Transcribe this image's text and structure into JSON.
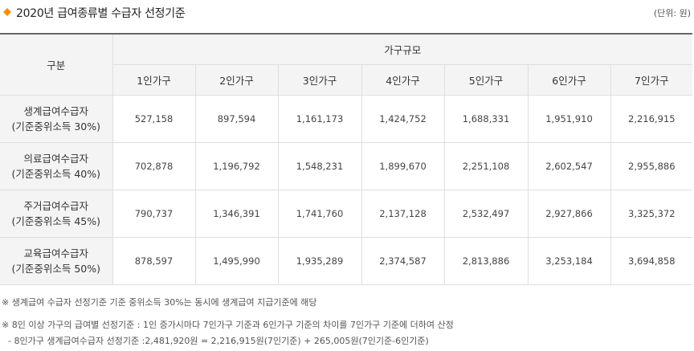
{
  "header": {
    "title": "2020년 급여종류별 수급자 선정기준",
    "unit": "(단위: 원)",
    "accent_color": "#f39200"
  },
  "table": {
    "row_header_label": "구분",
    "group_header": "가구규모",
    "columns": [
      "1인가구",
      "2인가구",
      "3인가구",
      "4인가구",
      "5인가구",
      "6인가구",
      "7인가구"
    ],
    "rows": [
      {
        "name": "생계급여수급자",
        "sub": "(기준중위소득 30%)",
        "values": [
          "527,158",
          "897,594",
          "1,161,173",
          "1,424,752",
          "1,688,331",
          "1,951,910",
          "2,216,915"
        ]
      },
      {
        "name": "의료급여수급자",
        "sub": "(기준중위소득 40%)",
        "values": [
          "702,878",
          "1,196,792",
          "1,548,231",
          "1,899,670",
          "2,251,108",
          "2,602,547",
          "2,955,886"
        ]
      },
      {
        "name": "주거급여수급자",
        "sub": "(기준중위소득 45%)",
        "values": [
          "790,737",
          "1,346,391",
          "1,741,760",
          "2,137,128",
          "2,532,497",
          "2,927,866",
          "3,325,372"
        ]
      },
      {
        "name": "교육급여수급자",
        "sub": "(기준중위소득 50%)",
        "values": [
          "878,597",
          "1,495,990",
          "1,935,289",
          "2,374,587",
          "2,813,886",
          "3,253,184",
          "3,694,858"
        ]
      }
    ]
  },
  "notes": [
    "※ 생계급여 수급자 선정기준 기준 중위소득 30%는 동시에 생계급여 지급기준에 해당",
    "※ 8인 이상 가구의 급여별 선정기준 : 1인 증가시마다 7인가구 기준과 6인가구 기준의 차이를 7인가구 기준에 더하여 산정",
    "- 8인가구 생계급여수급자 선정기준 :2,481,920원 = 2,216,915원(7인기준) + 265,005원(7인기준-6인기준)"
  ]
}
